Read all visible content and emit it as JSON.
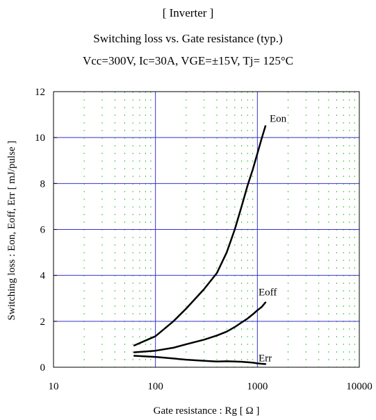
{
  "chart_data": {
    "type": "line",
    "title": "[ Inverter ]",
    "subtitle": "Switching loss  vs.  Gate resistance (typ.)",
    "conditions": "Vcc=300V, Ic=30A, VGE=±15V, Tj= 125°C",
    "xlabel": "Gate resistance : Rg [ Ω ]",
    "ylabel": "Switching loss : Eon, Eoff, Err [ mJ/pulse ]",
    "x_scale": "log",
    "xlim": [
      10,
      10000
    ],
    "ylim": [
      0,
      12
    ],
    "x_ticks": [
      "10",
      "100",
      "1000",
      "10000"
    ],
    "y_ticks": [
      "0",
      "2",
      "4",
      "6",
      "8",
      "10",
      "12"
    ],
    "grid": true,
    "series": [
      {
        "name": "Eon",
        "x": [
          62,
          100,
          150,
          200,
          300,
          400,
          500,
          600,
          700,
          800,
          900,
          1000,
          1100,
          1200
        ],
        "y": [
          0.95,
          1.35,
          2.0,
          2.55,
          3.4,
          4.1,
          5.0,
          6.0,
          7.0,
          7.9,
          8.6,
          9.3,
          9.95,
          10.5
        ]
      },
      {
        "name": "Eoff",
        "x": [
          62,
          100,
          150,
          200,
          300,
          400,
          500,
          600,
          700,
          800,
          900,
          1000,
          1100,
          1200
        ],
        "y": [
          0.65,
          0.72,
          0.85,
          1.0,
          1.2,
          1.38,
          1.55,
          1.75,
          1.95,
          2.12,
          2.3,
          2.48,
          2.62,
          2.82
        ]
      },
      {
        "name": "Err",
        "x": [
          62,
          100,
          150,
          200,
          300,
          400,
          500,
          600,
          700,
          800,
          900,
          1000,
          1100,
          1200
        ],
        "y": [
          0.5,
          0.45,
          0.38,
          0.33,
          0.28,
          0.25,
          0.26,
          0.25,
          0.24,
          0.22,
          0.2,
          0.17,
          0.15,
          0.14
        ]
      }
    ],
    "colors": {
      "major_grid": "#3333cc",
      "minor_grid": "#33cc33",
      "curve": "#000000",
      "conditions_text": "#1a1aff"
    }
  }
}
